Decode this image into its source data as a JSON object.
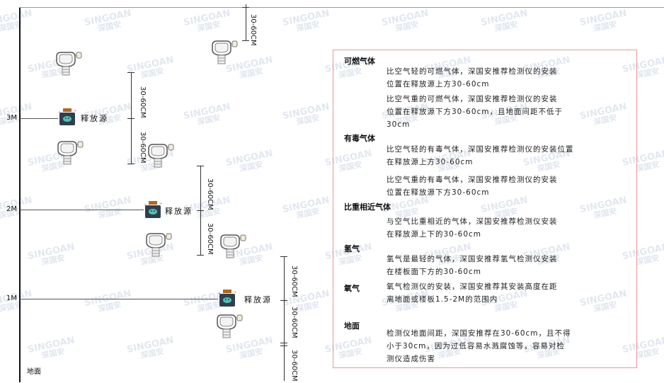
{
  "watermark": {
    "brand": "SINGOAN",
    "name": "深国安"
  },
  "floors": [
    {
      "label": "3M"
    },
    {
      "label": "2M"
    },
    {
      "label": "1M"
    },
    {
      "label": "地面"
    }
  ],
  "source_label": "释放源",
  "dimension_label": "30-60CM",
  "panel": {
    "sections": [
      {
        "heading": "可燃气体",
        "paras": [
          "比空气轻的可燃气体，深国安推荐检测仪的安装\n位置在释放源上方30-60cm",
          "比空气重的可燃气体，深国安推荐检测仪的安装\n位置在释放源下方30-60cm，且地面间距不低于\n30cm"
        ]
      },
      {
        "heading": "有毒气体",
        "paras": [
          "比空气轻的有毒气体，深国安推荐检测仪的安装位置\n在释放源上方30-60cm",
          "比空气重的有毒气体，深国安推荐检测仪的安装\n位置在释放源下方30-60cm"
        ]
      },
      {
        "heading": "比重相近气体",
        "paras": [
          "与空气比重相近的气体，深国安推荐检测仪安装\n在释放源上下的30-60cm"
        ]
      },
      {
        "heading": "氢气",
        "paras": [
          "氢气是最轻的气体，深国安推荐氢气检测仪安装\n在楼板面下方的30-60cm"
        ]
      },
      {
        "heading": "氧气",
        "paras": [
          "氧气检测仪的安装，深国安推荐其安装高度在距\n离地面或楼板1.5-2M的范围内"
        ]
      },
      {
        "heading": "地面",
        "paras": [
          "检测仪地面间距，深国安推荐在30-60cm，且不得\n小于30cm，因为过低容易水溅腐蚀等，容易对检\n测仪造成伤害"
        ]
      }
    ]
  },
  "colors": {
    "panel_border": "#ee9999",
    "source_body": "#2f3f4f",
    "source_cap": "#b5651d",
    "source_face": "#4fc3b0"
  }
}
